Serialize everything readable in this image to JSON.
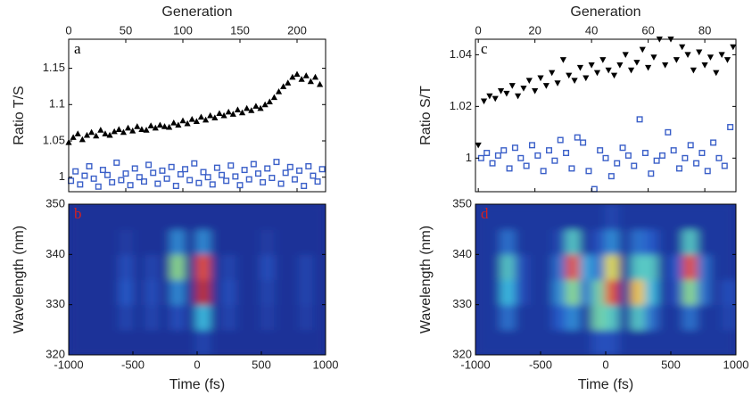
{
  "chart_data": [
    {
      "type": "scatter",
      "xlabel": "Generation",
      "ylabel": "Ratio T/S",
      "panel_label": "a",
      "panel_label_color": "#000000",
      "xlim": [
        0,
        225
      ],
      "xticks": [
        0,
        50,
        100,
        150,
        200
      ],
      "ylim": [
        0.98,
        1.19
      ],
      "yticks": [
        1,
        1.05,
        1.1,
        1.15
      ],
      "series": [
        {
          "color": "#000000",
          "marker": "triangle-up",
          "x": [
            0,
            4,
            8,
            12,
            16,
            20,
            24,
            28,
            32,
            36,
            40,
            44,
            48,
            52,
            56,
            60,
            64,
            68,
            72,
            76,
            80,
            84,
            88,
            92,
            96,
            100,
            104,
            108,
            112,
            116,
            120,
            124,
            128,
            132,
            136,
            140,
            144,
            148,
            152,
            156,
            160,
            164,
            168,
            172,
            176,
            180,
            184,
            188,
            192,
            196,
            200,
            204,
            208,
            212,
            216,
            220
          ],
          "values": [
            1.048,
            1.055,
            1.06,
            1.052,
            1.058,
            1.062,
            1.057,
            1.065,
            1.06,
            1.058,
            1.063,
            1.066,
            1.062,
            1.068,
            1.064,
            1.07,
            1.066,
            1.065,
            1.071,
            1.068,
            1.072,
            1.07,
            1.069,
            1.075,
            1.072,
            1.078,
            1.074,
            1.08,
            1.077,
            1.083,
            1.079,
            1.085,
            1.082,
            1.088,
            1.085,
            1.09,
            1.087,
            1.093,
            1.089,
            1.095,
            1.092,
            1.098,
            1.095,
            1.1,
            1.104,
            1.11,
            1.118,
            1.125,
            1.13,
            1.138,
            1.142,
            1.135,
            1.14,
            1.132,
            1.138,
            1.128
          ]
        },
        {
          "color": "#3a5fc8",
          "marker": "square",
          "x": [
            2,
            6,
            10,
            14,
            18,
            22,
            26,
            30,
            34,
            38,
            42,
            46,
            50,
            54,
            58,
            62,
            66,
            70,
            74,
            78,
            82,
            86,
            90,
            94,
            98,
            102,
            106,
            110,
            114,
            118,
            122,
            126,
            130,
            134,
            138,
            142,
            146,
            150,
            154,
            158,
            162,
            166,
            170,
            174,
            178,
            182,
            186,
            190,
            194,
            198,
            202,
            206,
            210,
            214,
            218,
            222
          ],
          "values": [
            0.995,
            1.008,
            0.99,
            1.002,
            1.015,
            0.998,
            0.987,
            1.01,
            1.003,
            0.993,
            1.02,
            0.996,
            1.005,
            0.989,
            1.012,
            1.0,
            0.994,
            1.017,
            1.006,
            0.991,
            1.009,
            0.998,
            1.014,
            0.988,
            1.004,
            1.011,
            0.996,
            1.019,
            0.992,
            1.007,
            1.0,
            0.99,
            1.013,
            1.003,
            0.995,
            1.016,
            1.001,
            0.989,
            1.01,
            0.997,
            1.018,
            1.005,
            0.993,
            1.012,
            0.999,
            1.021,
            0.991,
            1.006,
            1.014,
            0.997,
            1.009,
            0.988,
            1.015,
            1.002,
            0.994,
            1.011
          ]
        }
      ]
    },
    {
      "type": "heatmap",
      "xlabel": "Time (fs)",
      "ylabel": "Wavelength (nm)",
      "panel_label": "b",
      "panel_label_color": "#d42020",
      "xlim": [
        -1000,
        1000
      ],
      "xticks": [
        -1000,
        -500,
        0,
        500,
        1000
      ],
      "ylim": [
        320,
        350
      ],
      "yticks": [
        320,
        330,
        340,
        350
      ],
      "x": [
        -950,
        -850,
        -750,
        -650,
        -550,
        -450,
        -350,
        -250,
        -150,
        -50,
        50,
        150,
        250,
        350,
        450,
        550,
        650,
        750,
        850,
        950
      ],
      "y": [
        322.5,
        327.5,
        332.5,
        337.5,
        342.5,
        347.5
      ],
      "z": [
        [
          0.05,
          0.05,
          0.05,
          0.05,
          0.05,
          0.05,
          0.05,
          0.05,
          0.05,
          0.05,
          0.15,
          0.05,
          0.05,
          0.05,
          0.05,
          0.05,
          0.05,
          0.05,
          0.05,
          0.05
        ],
        [
          0.05,
          0.05,
          0.05,
          0.05,
          0.15,
          0.05,
          0.15,
          0.05,
          0.2,
          0.05,
          0.45,
          0.05,
          0.15,
          0.05,
          0.05,
          0.12,
          0.05,
          0.05,
          0.12,
          0.05
        ],
        [
          0.05,
          0.05,
          0.05,
          0.05,
          0.25,
          0.05,
          0.2,
          0.05,
          0.35,
          0.05,
          0.95,
          0.05,
          0.2,
          0.05,
          0.05,
          0.15,
          0.05,
          0.05,
          0.15,
          0.05
        ],
        [
          0.05,
          0.05,
          0.05,
          0.05,
          0.2,
          0.05,
          0.15,
          0.05,
          0.6,
          0.05,
          0.9,
          0.05,
          0.15,
          0.05,
          0.05,
          0.2,
          0.05,
          0.05,
          0.15,
          0.05
        ],
        [
          0.05,
          0.05,
          0.05,
          0.05,
          0.1,
          0.05,
          0.05,
          0.05,
          0.35,
          0.05,
          0.35,
          0.05,
          0.05,
          0.05,
          0.05,
          0.1,
          0.05,
          0.05,
          0.05,
          0.05
        ],
        [
          0.05,
          0.05,
          0.05,
          0.05,
          0.05,
          0.05,
          0.05,
          0.05,
          0.05,
          0.05,
          0.05,
          0.05,
          0.05,
          0.05,
          0.05,
          0.05,
          0.05,
          0.05,
          0.05,
          0.05
        ]
      ]
    },
    {
      "type": "scatter",
      "xlabel": "Generation",
      "ylabel": "Ratio S/T",
      "panel_label": "c",
      "panel_label_color": "#000000",
      "xlim": [
        -1,
        91
      ],
      "xticks": [
        0,
        20,
        40,
        60,
        80
      ],
      "ylim": [
        0.987,
        1.046
      ],
      "yticks": [
        1,
        1.02,
        1.04
      ],
      "series": [
        {
          "color": "#000000",
          "marker": "triangle-down",
          "x": [
            0,
            2,
            4,
            6,
            8,
            10,
            12,
            14,
            16,
            18,
            20,
            22,
            24,
            26,
            28,
            30,
            32,
            34,
            36,
            38,
            40,
            42,
            44,
            46,
            48,
            50,
            52,
            54,
            56,
            58,
            60,
            62,
            64,
            66,
            68,
            70,
            72,
            74,
            76,
            78,
            80,
            82,
            84,
            86,
            88,
            90
          ],
          "values": [
            1.005,
            1.022,
            1.024,
            1.023,
            1.026,
            1.025,
            1.028,
            1.024,
            1.027,
            1.03,
            1.026,
            1.031,
            1.028,
            1.033,
            1.029,
            1.038,
            1.032,
            1.03,
            1.035,
            1.031,
            1.036,
            1.033,
            1.038,
            1.034,
            1.032,
            1.036,
            1.04,
            1.034,
            1.037,
            1.042,
            1.035,
            1.039,
            1.046,
            1.036,
            1.046,
            1.038,
            1.043,
            1.04,
            1.034,
            1.041,
            1.036,
            1.039,
            1.033,
            1.04,
            1.038,
            1.043
          ]
        },
        {
          "color": "#3a5fc8",
          "marker": "square",
          "x": [
            1,
            3,
            5,
            7,
            9,
            11,
            13,
            15,
            17,
            19,
            21,
            23,
            25,
            27,
            29,
            31,
            33,
            35,
            37,
            39,
            41,
            43,
            45,
            47,
            49,
            51,
            53,
            55,
            57,
            59,
            61,
            63,
            65,
            67,
            69,
            71,
            73,
            75,
            77,
            79,
            81,
            83,
            85,
            87,
            89
          ],
          "values": [
            1.0,
            1.002,
            0.998,
            1.001,
            1.003,
            0.996,
            1.004,
            1.0,
            0.997,
            1.005,
            1.001,
            0.995,
            1.003,
            0.999,
            1.007,
            1.002,
            0.996,
            1.008,
            1.006,
            0.995,
            0.988,
            1.003,
            1.0,
            0.993,
            0.998,
            1.004,
            1.001,
            0.997,
            1.015,
            1.002,
            0.994,
            0.999,
            1.001,
            1.01,
            1.003,
            0.996,
            1.0,
            1.005,
            0.998,
            1.002,
            0.995,
            1.006,
            1.0,
            0.997,
            1.012
          ]
        }
      ]
    },
    {
      "type": "heatmap",
      "xlabel": "Time (fs)",
      "ylabel": "Wavelength (nm)",
      "panel_label": "d",
      "panel_label_color": "#d42020",
      "xlim": [
        -1000,
        1000
      ],
      "xticks": [
        -1000,
        -500,
        0,
        500,
        1000
      ],
      "ylim": [
        320,
        350
      ],
      "yticks": [
        320,
        330,
        340,
        350
      ],
      "x": [
        -950,
        -850,
        -750,
        -650,
        -550,
        -450,
        -350,
        -250,
        -150,
        -50,
        50,
        150,
        250,
        350,
        450,
        550,
        650,
        750,
        850,
        950
      ],
      "y": [
        322.5,
        327.5,
        332.5,
        337.5,
        342.5,
        347.5
      ],
      "z": [
        [
          0.08,
          0.08,
          0.08,
          0.08,
          0.08,
          0.08,
          0.08,
          0.08,
          0.08,
          0.2,
          0.2,
          0.08,
          0.08,
          0.08,
          0.08,
          0.08,
          0.08,
          0.08,
          0.08,
          0.08
        ],
        [
          0.08,
          0.08,
          0.3,
          0.08,
          0.08,
          0.08,
          0.25,
          0.35,
          0.08,
          0.55,
          0.5,
          0.08,
          0.5,
          0.3,
          0.08,
          0.08,
          0.3,
          0.08,
          0.08,
          0.15
        ],
        [
          0.08,
          0.08,
          0.45,
          0.2,
          0.08,
          0.08,
          0.35,
          0.6,
          0.3,
          0.55,
          0.9,
          0.08,
          0.8,
          0.45,
          0.08,
          0.2,
          0.6,
          0.3,
          0.08,
          0.2
        ],
        [
          0.08,
          0.08,
          0.5,
          0.2,
          0.08,
          0.08,
          0.3,
          0.9,
          0.4,
          0.3,
          0.75,
          0.08,
          0.5,
          0.5,
          0.08,
          0.25,
          0.9,
          0.3,
          0.08,
          0.08
        ],
        [
          0.08,
          0.08,
          0.3,
          0.08,
          0.08,
          0.08,
          0.15,
          0.5,
          0.08,
          0.2,
          0.35,
          0.08,
          0.3,
          0.25,
          0.08,
          0.08,
          0.5,
          0.08,
          0.08,
          0.08
        ],
        [
          0.08,
          0.08,
          0.08,
          0.08,
          0.08,
          0.08,
          0.08,
          0.08,
          0.08,
          0.08,
          0.15,
          0.08,
          0.08,
          0.08,
          0.08,
          0.08,
          0.08,
          0.08,
          0.08,
          0.08
        ]
      ]
    }
  ]
}
